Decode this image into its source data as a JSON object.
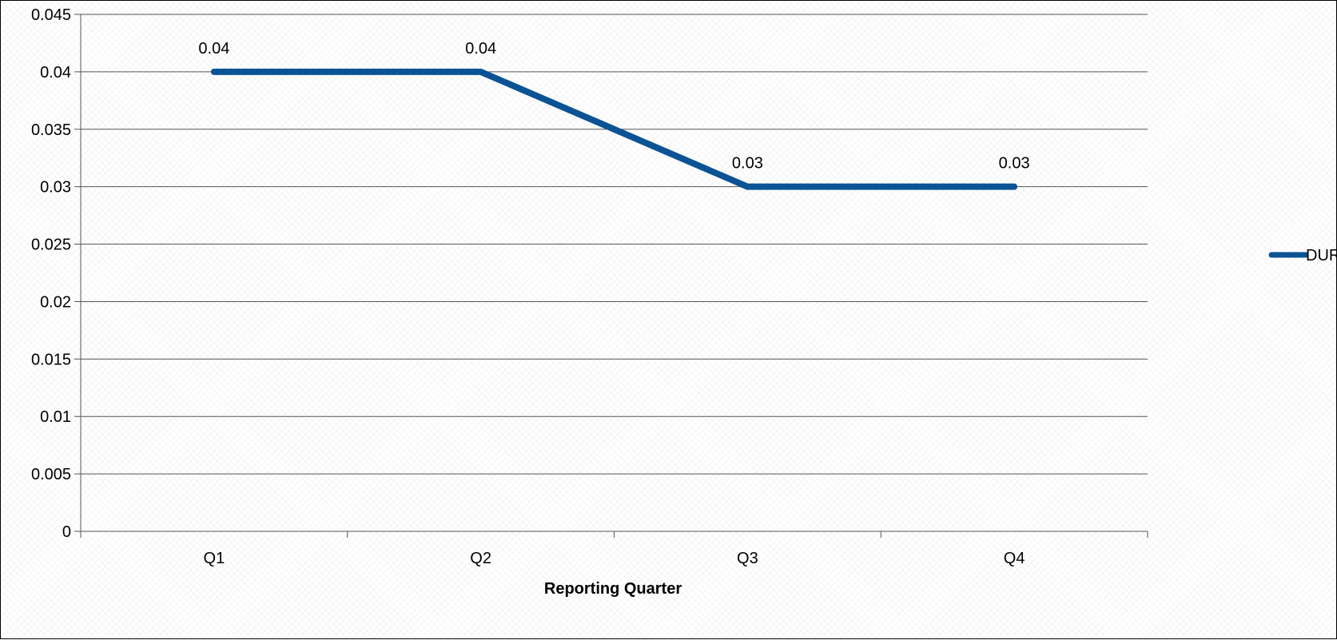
{
  "chart_data": {
    "type": "line",
    "title": "",
    "xlabel": "Reporting Quarter",
    "ylabel": "",
    "categories": [
      "Q1",
      "Q2",
      "Q3",
      "Q4"
    ],
    "series": [
      {
        "name": "DUR",
        "values": [
          0.04,
          0.04,
          0.03,
          0.03
        ],
        "labels": [
          "0.04",
          "0.04",
          "0.03",
          "0.03"
        ],
        "color": "#0b5394"
      }
    ],
    "ylim": [
      0,
      0.045
    ],
    "yticks": [
      "0",
      "0.005",
      "0.01",
      "0.015",
      "0.02",
      "0.025",
      "0.03",
      "0.035",
      "0.04",
      "0.045"
    ],
    "grid": true,
    "legend": "right",
    "colors": {
      "line": "#0b5394",
      "grid": "#555555",
      "text": "#000000"
    }
  }
}
